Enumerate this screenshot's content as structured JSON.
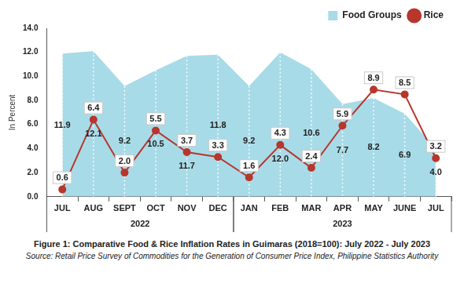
{
  "chart_data": {
    "type": "line",
    "title": "Figure 1: Comparative Food & Rice Inflation Rates in Guimaras (2018=100): July 2022 - July 2023",
    "source": "Source: Retail Price Survey of Commodities for the Generation of Consumer Price Index, Philippine Statistics Authority",
    "y_label": "In Percent",
    "categories": [
      "JUL",
      "AUG",
      "SEPT",
      "OCT",
      "NOV",
      "DEC",
      "JAN",
      "FEB",
      "MAR",
      "APR",
      "MAY",
      "JUNE",
      "JUL"
    ],
    "category_groups": [
      {
        "label": "2022",
        "size": 6
      },
      {
        "label": "2023",
        "size": 7
      }
    ],
    "series": [
      {
        "name": "Food Groups",
        "type": "area",
        "color": "#a8dbe8",
        "values": [
          11.9,
          12.1,
          9.2,
          10.5,
          11.7,
          11.8,
          9.2,
          12.0,
          10.6,
          7.7,
          8.2,
          6.9,
          4.0
        ],
        "value_labels": [
          "11.9",
          "12.1",
          "9.2",
          "10.5",
          "11.7",
          "11.8",
          "9.2",
          "12.0",
          "10.6",
          "7.7",
          "8.2",
          "6.9",
          "4.0"
        ]
      },
      {
        "name": "Rice",
        "type": "line",
        "color": "#b8362b",
        "marker": "circle",
        "values": [
          0.6,
          6.4,
          2.0,
          5.5,
          3.7,
          3.3,
          1.6,
          4.3,
          2.4,
          5.9,
          8.9,
          8.5,
          3.2
        ],
        "value_labels": [
          "0.6",
          "6.4",
          "2.0",
          "5.5",
          "3.7",
          "3.3",
          "1.6",
          "4.3",
          "2.4",
          "5.9",
          "8.9",
          "8.5",
          "3.2"
        ]
      }
    ],
    "ylim": [
      0,
      14
    ],
    "yticks": [
      {
        "value": 0,
        "label": "0.0"
      },
      {
        "value": 2,
        "label": "2.0"
      },
      {
        "value": 4,
        "label": "4.0"
      },
      {
        "value": 6,
        "label": "6.0"
      },
      {
        "value": 8,
        "label": "8.0"
      },
      {
        "value": 10,
        "label": "10.0"
      },
      {
        "value": 12,
        "label": "12.0"
      },
      {
        "value": 14,
        "label": "14.0"
      }
    ],
    "grid": false,
    "legend": "top-right",
    "data_labels": true
  }
}
